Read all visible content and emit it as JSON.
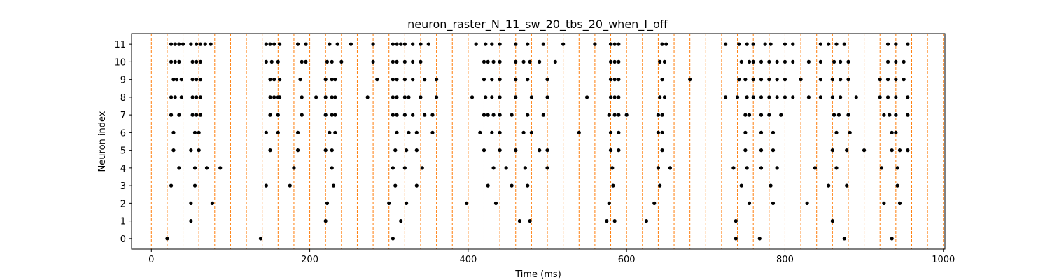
{
  "chart_data": {
    "type": "scatter",
    "title": "neuron_raster_N_11_sw_20_tbs_20_when_I_off",
    "xlabel": "Time (ms)",
    "ylabel": "Neuron index",
    "xlim": [
      -25,
      1002
    ],
    "ylim": [
      -0.6,
      11.6
    ],
    "x_ticks": [
      0,
      200,
      400,
      600,
      800,
      1000
    ],
    "y_ticks": [
      0,
      1,
      2,
      3,
      4,
      5,
      6,
      7,
      8,
      9,
      10,
      11
    ],
    "grid": false,
    "marker_color": "#000000",
    "line_color": "#ff7f0e",
    "vertical_lines": [
      0,
      20,
      40,
      60,
      80,
      100,
      120,
      140,
      160,
      180,
      200,
      220,
      240,
      260,
      280,
      300,
      320,
      340,
      360,
      380,
      400,
      420,
      440,
      460,
      480,
      500,
      520,
      540,
      560,
      580,
      600,
      620,
      640,
      660,
      680,
      700,
      720,
      740,
      760,
      780,
      800,
      820,
      840,
      860,
      880,
      900,
      920,
      940,
      960,
      980,
      1000
    ],
    "spikes": [
      {
        "neuron": 0,
        "times": [
          20,
          138,
          305,
          738,
          768,
          875,
          935
        ]
      },
      {
        "neuron": 1,
        "times": [
          50,
          220,
          315,
          465,
          478,
          575,
          585,
          625,
          738,
          860
        ]
      },
      {
        "neuron": 2,
        "times": [
          50,
          77,
          222,
          300,
          322,
          398,
          435,
          578,
          635,
          755,
          785,
          828,
          925,
          945
        ]
      },
      {
        "neuron": 3,
        "times": [
          25,
          55,
          145,
          175,
          230,
          308,
          335,
          425,
          455,
          475,
          583,
          642,
          745,
          782,
          855,
          878,
          942
        ]
      },
      {
        "neuron": 4,
        "times": [
          35,
          55,
          70,
          87,
          180,
          228,
          305,
          320,
          342,
          432,
          448,
          472,
          500,
          582,
          640,
          655,
          735,
          752,
          770,
          790,
          838,
          865,
          922,
          942
        ]
      },
      {
        "neuron": 5,
        "times": [
          28,
          50,
          60,
          150,
          185,
          220,
          228,
          308,
          322,
          335,
          420,
          440,
          460,
          490,
          500,
          580,
          590,
          645,
          750,
          770,
          785,
          860,
          878,
          900,
          935,
          945,
          955
        ]
      },
      {
        "neuron": 6,
        "times": [
          28,
          55,
          60,
          145,
          160,
          185,
          225,
          232,
          310,
          325,
          335,
          355,
          415,
          430,
          440,
          470,
          480,
          540,
          580,
          590,
          640,
          645,
          750,
          770,
          785,
          865,
          882,
          935,
          940
        ]
      },
      {
        "neuron": 7,
        "times": [
          25,
          35,
          52,
          57,
          62,
          150,
          160,
          190,
          220,
          228,
          232,
          305,
          310,
          320,
          330,
          345,
          355,
          420,
          425,
          432,
          440,
          455,
          475,
          495,
          578,
          585,
          590,
          600,
          640,
          645,
          750,
          755,
          770,
          780,
          795,
          862,
          868,
          880,
          925,
          932,
          940,
          955
        ]
      },
      {
        "neuron": 8,
        "times": [
          25,
          30,
          38,
          52,
          57,
          62,
          150,
          155,
          160,
          162,
          190,
          208,
          220,
          228,
          232,
          273,
          305,
          310,
          320,
          325,
          340,
          360,
          405,
          422,
          430,
          440,
          460,
          480,
          500,
          550,
          580,
          585,
          590,
          642,
          648,
          725,
          740,
          752,
          760,
          770,
          780,
          790,
          800,
          810,
          830,
          845,
          860,
          870,
          890,
          920,
          930,
          940,
          955
        ]
      },
      {
        "neuron": 9,
        "times": [
          28,
          32,
          38,
          52,
          57,
          62,
          150,
          155,
          162,
          188,
          220,
          228,
          232,
          285,
          305,
          310,
          320,
          330,
          345,
          360,
          420,
          430,
          440,
          460,
          475,
          500,
          580,
          585,
          590,
          645,
          680,
          742,
          750,
          760,
          770,
          780,
          790,
          800,
          820,
          845,
          860,
          870,
          880,
          920,
          930,
          940,
          950
        ]
      },
      {
        "neuron": 10,
        "times": [
          25,
          30,
          35,
          52,
          57,
          62,
          145,
          152,
          160,
          190,
          195,
          222,
          228,
          240,
          280,
          305,
          310,
          320,
          330,
          340,
          420,
          425,
          432,
          440,
          460,
          470,
          478,
          490,
          510,
          580,
          585,
          590,
          642,
          648,
          745,
          755,
          760,
          770,
          780,
          790,
          800,
          810,
          830,
          845,
          862,
          870,
          880,
          930,
          940,
          950
        ]
      },
      {
        "neuron": 11,
        "times": [
          25,
          30,
          35,
          40,
          50,
          57,
          62,
          68,
          75,
          145,
          150,
          155,
          162,
          185,
          195,
          225,
          235,
          252,
          280,
          305,
          310,
          315,
          320,
          330,
          340,
          350,
          410,
          422,
          430,
          440,
          460,
          475,
          495,
          520,
          560,
          580,
          585,
          590,
          645,
          650,
          725,
          742,
          752,
          760,
          775,
          782,
          800,
          810,
          845,
          855,
          865,
          875,
          930,
          940,
          955
        ]
      }
    ]
  }
}
